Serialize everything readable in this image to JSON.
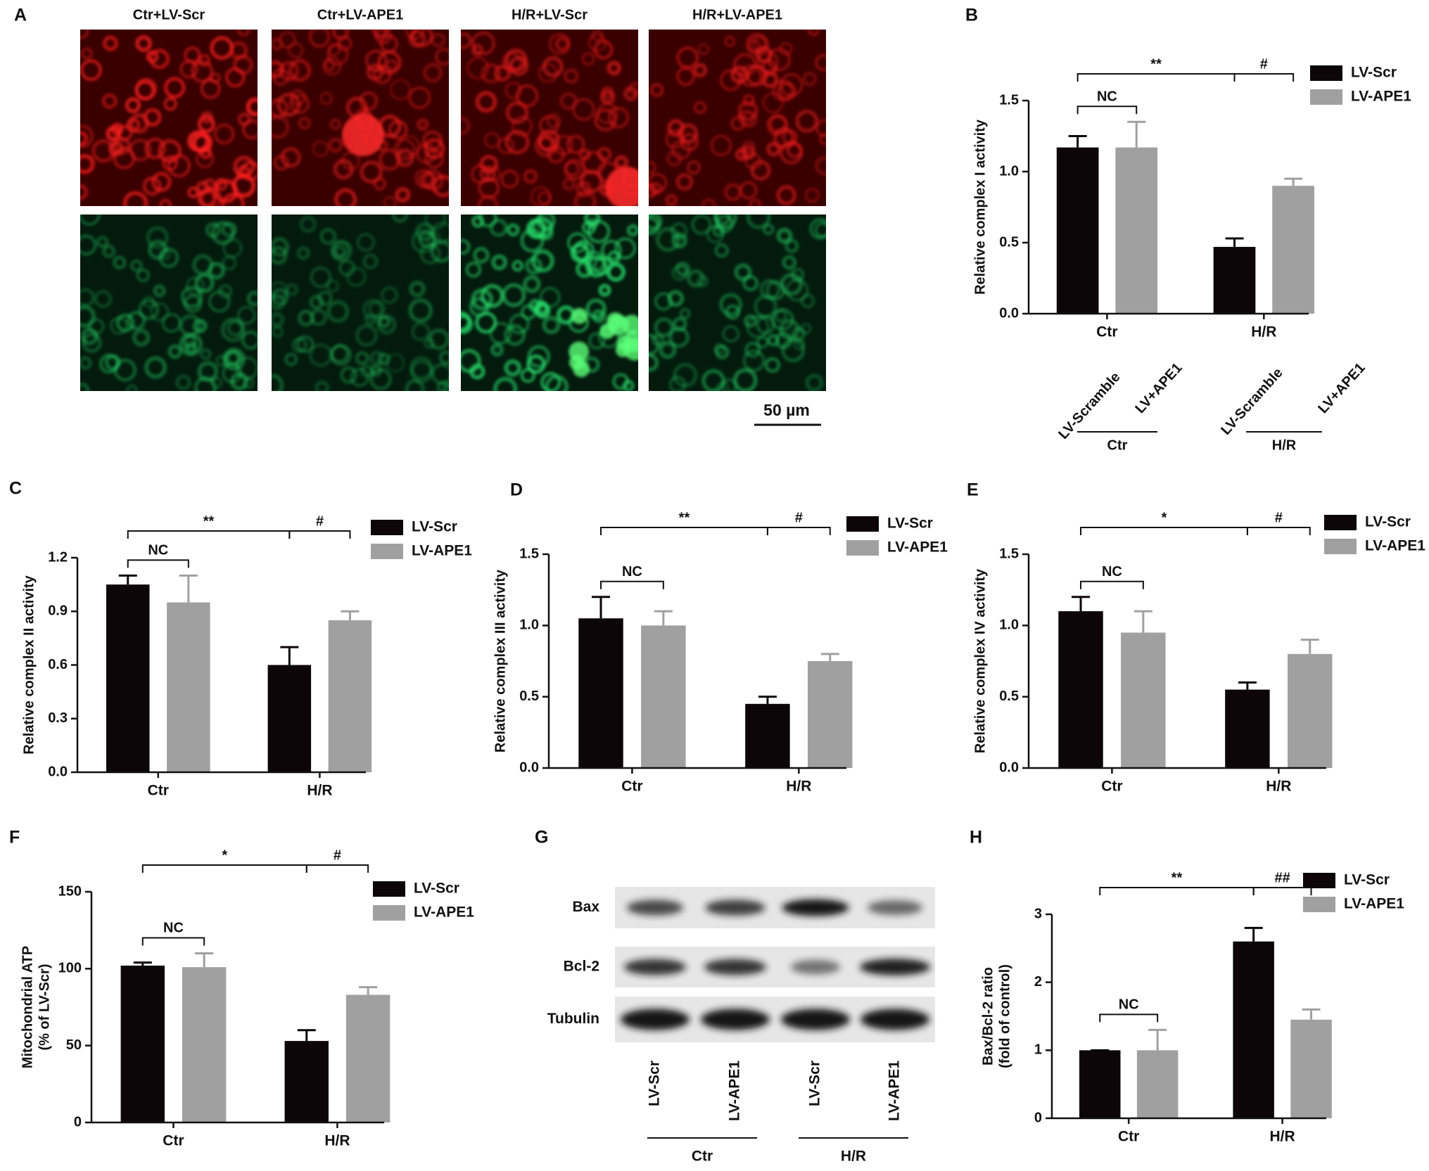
{
  "panel_labels": [
    "A",
    "B",
    "C",
    "D",
    "E",
    "F",
    "G",
    "H"
  ],
  "micrographs": {
    "columns": [
      "Ctr+LV-Scr",
      "Ctr+LV-APE1",
      "H/R+LV-Scr",
      "H/R+LV-APE1"
    ],
    "scale_bar": "50 µm"
  },
  "western_blot": {
    "rows": [
      "Bax",
      "Bcl-2",
      "Tubulin"
    ],
    "lanes": [
      "LV-Scr",
      "LV-APE1",
      "LV-Scr",
      "LV-APE1"
    ],
    "groups": [
      "Ctr",
      "H/R"
    ]
  },
  "chart_data": [
    {
      "type": "bar",
      "ylabel": "Relative complex I activity",
      "categories": [
        "Ctr",
        "H/R"
      ],
      "series": [
        {
          "name": "LV-Scr",
          "color": "#0d0608",
          "values": [
            1.17,
            0.47
          ],
          "errors": [
            0.08,
            0.06
          ]
        },
        {
          "name": "LV-APE1",
          "color": "#a0a0a0",
          "values": [
            1.17,
            0.9
          ],
          "errors": [
            0.18,
            0.05
          ]
        }
      ],
      "ylim": [
        0,
        1.5
      ],
      "yticks": [
        {
          "value": 0,
          "label": "0.0"
        },
        0.5,
        {
          "value": 1,
          "label": "1.0"
        },
        1.5
      ],
      "annotations": [
        "**",
        "#",
        "NC"
      ],
      "lane_labels": [
        "LV-Scramble",
        "LV+APE1",
        "LV-Scramble",
        "LV+APE1"
      ],
      "lane_groups": [
        "Ctr",
        "H/R"
      ]
    },
    {
      "type": "bar",
      "ylabel": "Relative complex II activity",
      "categories": [
        "Ctr",
        "H/R"
      ],
      "series": [
        {
          "name": "LV-Scr",
          "color": "#0d0608",
          "values": [
            1.05,
            0.6
          ],
          "errors": [
            0.05,
            0.1
          ]
        },
        {
          "name": "LV-APE1",
          "color": "#a0a0a0",
          "values": [
            0.95,
            0.85
          ],
          "errors": [
            0.15,
            0.05
          ]
        }
      ],
      "ylim": [
        0,
        1.2
      ],
      "yticks": [
        {
          "value": 0,
          "label": "0.0"
        },
        0.3,
        0.6,
        0.9,
        1.2
      ],
      "annotations": [
        "**",
        "#",
        "NC"
      ]
    },
    {
      "type": "bar",
      "ylabel": "Relative complex III activity",
      "categories": [
        "Ctr",
        "H/R"
      ],
      "series": [
        {
          "name": "LV-Scr",
          "color": "#0d0608",
          "values": [
            1.05,
            0.45
          ],
          "errors": [
            0.15,
            0.05
          ]
        },
        {
          "name": "LV-APE1",
          "color": "#a0a0a0",
          "values": [
            1.0,
            0.75
          ],
          "errors": [
            0.1,
            0.05
          ]
        }
      ],
      "ylim": [
        0,
        1.5
      ],
      "yticks": [
        {
          "value": 0,
          "label": "0.0"
        },
        0.5,
        {
          "value": 1,
          "label": "1.0"
        },
        1.5
      ],
      "annotations": [
        "**",
        "#",
        "NC"
      ]
    },
    {
      "type": "bar",
      "ylabel": "Relative complex IV activity",
      "categories": [
        "Ctr",
        "H/R"
      ],
      "series": [
        {
          "name": "LV-Scr",
          "color": "#0d0608",
          "values": [
            1.1,
            0.55
          ],
          "errors": [
            0.1,
            0.05
          ]
        },
        {
          "name": "LV-APE1",
          "color": "#a0a0a0",
          "values": [
            0.95,
            0.8
          ],
          "errors": [
            0.15,
            0.1
          ]
        }
      ],
      "ylim": [
        0,
        1.5
      ],
      "yticks": [
        {
          "value": 0,
          "label": "0.0"
        },
        0.5,
        {
          "value": 1,
          "label": "1.0"
        },
        1.5
      ],
      "annotations": [
        "*",
        "#",
        "NC"
      ]
    },
    {
      "type": "bar",
      "ylabel": [
        "Mitochondrial ATP",
        "(% of LV-Scr)"
      ],
      "categories": [
        "Ctr",
        "H/R"
      ],
      "series": [
        {
          "name": "LV-Scr",
          "color": "#0d0608",
          "values": [
            102,
            53
          ],
          "errors": [
            2,
            7
          ]
        },
        {
          "name": "LV-APE1",
          "color": "#a0a0a0",
          "values": [
            101,
            83
          ],
          "errors": [
            9,
            5
          ]
        }
      ],
      "ylim": [
        0,
        150
      ],
      "yticks": [
        0,
        50,
        100,
        150
      ],
      "annotations": [
        "*",
        "#",
        "NC"
      ]
    },
    {
      "type": "bar",
      "ylabel": [
        "Bax/Bcl-2 ratio",
        "(fold of control)"
      ],
      "categories": [
        "Ctr",
        "H/R"
      ],
      "series": [
        {
          "name": "LV-Scr",
          "color": "#0d0608",
          "values": [
            1.0,
            2.6
          ],
          "errors": [
            0,
            0.2
          ]
        },
        {
          "name": "LV-APE1",
          "color": "#a0a0a0",
          "values": [
            1.0,
            1.45
          ],
          "errors": [
            0.3,
            0.15
          ]
        }
      ],
      "ylim": [
        0,
        3
      ],
      "yticks": [
        0,
        1,
        2,
        3
      ],
      "annotations": [
        "**",
        "##",
        "NC"
      ]
    }
  ]
}
